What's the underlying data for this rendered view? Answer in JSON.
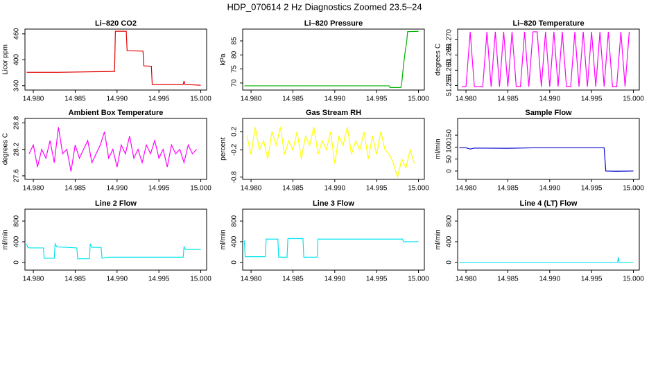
{
  "title": "HDP_070614  2 Hz Diagnostics Zoomed 23.5–24",
  "chart_data": [
    {
      "type": "line",
      "title": "Li–820 CO2",
      "y_label": "Licor ppm",
      "color": "#e00000",
      "x": [
        14.9792,
        14.983,
        14.986,
        14.9897,
        14.9898,
        14.9911,
        14.9912,
        14.9931,
        14.9932,
        14.9941,
        14.9942,
        14.9979,
        14.998,
        14.9981,
        15.0
      ],
      "values": [
        371,
        371,
        372,
        373,
        466,
        466,
        421,
        420,
        386,
        385,
        343,
        343,
        351,
        343,
        341
      ],
      "xlim": [
        14.979,
        15.0007
      ],
      "ylim": [
        330,
        471
      ],
      "xticks": [
        {
          "value": 14.98,
          "label": "14.980"
        },
        14.985,
        {
          "value": 14.99,
          "label": "14.990"
        },
        14.995,
        {
          "value": 15,
          "label": "15.000"
        }
      ],
      "yticks": [
        340,
        400,
        460
      ]
    },
    {
      "type": "line",
      "title": "Li–820 Pressure",
      "y_label": "kPa",
      "color": "#00b000",
      "x": [
        14.9792,
        14.99,
        14.9965,
        14.9966,
        14.9979,
        14.998,
        14.9982,
        14.9984,
        14.9986,
        14.9987,
        15.0
      ],
      "values": [
        69,
        69,
        69,
        68.4,
        68.4,
        70,
        76,
        81,
        85,
        88.3,
        88.4
      ],
      "xlim": [
        14.979,
        15.0007
      ],
      "ylim": [
        67.5,
        89.2
      ],
      "xticks": [
        {
          "value": 14.98,
          "label": "14.980"
        },
        14.985,
        {
          "value": 14.99,
          "label": "14.990"
        },
        14.995,
        {
          "value": 15,
          "label": "15.000"
        }
      ],
      "yticks": [
        70,
        75,
        80,
        85
      ]
    },
    {
      "type": "line",
      "title": "Li–820 Temperature",
      "y_label": "degrees C",
      "color": "#ff00ff",
      "x": [
        14.9795,
        14.98,
        14.9805,
        14.981,
        14.9815,
        14.982,
        14.9825,
        14.983,
        14.9835,
        14.984,
        14.9845,
        14.985,
        14.9855,
        14.986,
        14.9865,
        14.987,
        14.9875,
        14.988,
        14.9885,
        14.989,
        14.9895,
        14.99,
        14.9905,
        14.991,
        14.9915,
        14.992,
        14.9925,
        14.993,
        14.9935,
        14.994,
        14.9945,
        14.995,
        14.9955,
        14.996,
        14.9965,
        14.997,
        14.9975,
        14.998,
        14.9985,
        14.999,
        14.9995
      ],
      "values": [
        51.2546,
        51.2546,
        51.2726,
        51.2546,
        51.2546,
        51.2546,
        51.2726,
        51.2546,
        51.2726,
        51.2546,
        51.2726,
        51.2546,
        51.2726,
        51.2546,
        51.2546,
        51.2726,
        51.2546,
        51.2726,
        51.2726,
        51.2546,
        51.2726,
        51.2546,
        51.2726,
        51.2546,
        51.2726,
        51.2546,
        51.2546,
        51.2726,
        51.2546,
        51.2726,
        51.2546,
        51.2726,
        51.2546,
        51.2726,
        51.2546,
        51.2726,
        51.2546,
        51.2546,
        51.2726,
        51.2546,
        51.2726
      ],
      "xlim": [
        14.979,
        15.0007
      ],
      "ylim": [
        51.2535,
        51.2735
      ],
      "xticks": [
        {
          "value": 14.98,
          "label": "14.980"
        },
        14.985,
        {
          "value": 14.99,
          "label": "14.990"
        },
        14.995,
        {
          "value": 15,
          "label": "15.000"
        }
      ],
      "yticks": [
        51.255,
        {
          "value": 51.26,
          "label": "51.260"
        },
        51.265,
        {
          "value": 51.27,
          "label": "51.270"
        }
      ]
    },
    {
      "type": "line",
      "title": "Ambient Box Temperature",
      "y_label": "degrees C",
      "color": "#ff00ff",
      "x": [
        14.9795,
        14.98,
        14.9805,
        14.981,
        14.9815,
        14.982,
        14.9825,
        14.983,
        14.9835,
        14.984,
        14.9845,
        14.985,
        14.9855,
        14.986,
        14.9865,
        14.987,
        14.9875,
        14.988,
        14.9885,
        14.989,
        14.9895,
        14.99,
        14.9905,
        14.991,
        14.9915,
        14.992,
        14.9925,
        14.993,
        14.9935,
        14.994,
        14.9945,
        14.995,
        14.9955,
        14.996,
        14.9965,
        14.997,
        14.9975,
        14.998,
        14.9985,
        14.999,
        14.9995
      ],
      "values": [
        28.1,
        28.3,
        27.8,
        28.2,
        28.0,
        28.4,
        27.9,
        28.7,
        28.1,
        28.2,
        27.7,
        28.3,
        28.0,
        28.2,
        28.4,
        27.9,
        28.1,
        28.3,
        28.6,
        28.0,
        28.2,
        27.8,
        28.3,
        28.1,
        28.5,
        28.0,
        28.2,
        27.9,
        28.3,
        28.1,
        28.4,
        28.0,
        28.2,
        27.8,
        28.3,
        28.1,
        28.2,
        27.9,
        28.3,
        28.1,
        28.2
      ],
      "xlim": [
        14.979,
        15.0007
      ],
      "ylim": [
        27.52,
        28.9
      ],
      "xticks": [
        {
          "value": 14.98,
          "label": "14.980"
        },
        14.985,
        {
          "value": 14.99,
          "label": "14.990"
        },
        14.995,
        {
          "value": 15,
          "label": "15.000"
        }
      ],
      "yticks": [
        27.6,
        28.2,
        28.8
      ]
    },
    {
      "type": "line",
      "title": "Gas Stream RH",
      "y_label": "percent",
      "color": "#ffff00",
      "x": [
        14.9795,
        14.98,
        14.9805,
        14.981,
        14.9815,
        14.982,
        14.9825,
        14.983,
        14.9835,
        14.984,
        14.9845,
        14.985,
        14.9855,
        14.986,
        14.9865,
        14.987,
        14.9875,
        14.988,
        14.9885,
        14.989,
        14.9895,
        14.99,
        14.9905,
        14.991,
        14.9915,
        14.992,
        14.9925,
        14.993,
        14.9935,
        14.994,
        14.9945,
        14.995,
        14.9955,
        14.996,
        14.9965,
        14.997,
        14.9975,
        14.998,
        14.9985,
        14.999,
        14.9995
      ],
      "values": [
        0.1,
        -0.3,
        0.3,
        -0.2,
        0.0,
        -0.4,
        0.2,
        -0.1,
        0.3,
        -0.3,
        0.0,
        -0.2,
        0.2,
        -0.4,
        0.1,
        -0.1,
        0.3,
        -0.3,
        0.0,
        -0.2,
        0.2,
        -0.5,
        0.1,
        -0.1,
        0.3,
        -0.3,
        0.0,
        -0.2,
        0.2,
        -0.4,
        0.1,
        -0.3,
        0.2,
        -0.2,
        -0.3,
        -0.5,
        -0.8,
        -0.4,
        -0.6,
        -0.2,
        -0.5
      ],
      "xlim": [
        14.979,
        15.0007
      ],
      "ylim": [
        -0.85,
        0.49
      ],
      "xticks": [
        {
          "value": 14.98,
          "label": "14.980"
        },
        14.985,
        {
          "value": 14.99,
          "label": "14.990"
        },
        14.995,
        {
          "value": 15,
          "label": "15.000"
        }
      ],
      "yticks": [
        -0.8,
        -0.2,
        0.2
      ]
    },
    {
      "type": "line",
      "title": "Sample Flow",
      "y_label": "ml/min",
      "color": "#0000cc",
      "x": [
        14.9792,
        14.98,
        14.9805,
        14.981,
        14.985,
        14.988,
        14.992,
        14.9965,
        14.9967,
        14.998,
        15.0
      ],
      "values": [
        97,
        97,
        92,
        96,
        95,
        97,
        97,
        97,
        0,
        -1,
        0
      ],
      "xlim": [
        14.979,
        15.0007
      ],
      "ylim": [
        -35,
        220
      ],
      "xticks": [
        {
          "value": 14.98,
          "label": "14.980"
        },
        14.985,
        {
          "value": 14.99,
          "label": "14.990"
        },
        14.995,
        {
          "value": 15,
          "label": "15.000"
        }
      ],
      "yticks": [
        0,
        50,
        100,
        150
      ]
    },
    {
      "type": "line",
      "title": "Line 2 Flow",
      "y_label": "ml/min",
      "color": "#00e5ee",
      "x": [
        14.9792,
        14.9793,
        14.9795,
        14.9812,
        14.9813,
        14.9825,
        14.9826,
        14.9828,
        14.9852,
        14.9853,
        14.9867,
        14.9868,
        14.987,
        14.9881,
        14.9882,
        14.989,
        14.9979,
        14.998,
        14.9982,
        15.0
      ],
      "values": [
        360,
        300,
        280,
        280,
        80,
        80,
        360,
        300,
        280,
        70,
        70,
        360,
        290,
        290,
        80,
        100,
        100,
        300,
        250,
        250
      ],
      "xlim": [
        14.979,
        15.0007
      ],
      "ylim": [
        -150,
        1030
      ],
      "xticks": [
        {
          "value": 14.98,
          "label": "14.980"
        },
        14.985,
        {
          "value": 14.99,
          "label": "14.990"
        },
        14.995,
        {
          "value": 15,
          "label": "15.000"
        }
      ],
      "yticks": [
        0,
        400,
        800
      ]
    },
    {
      "type": "line",
      "title": "Line 3 Flow",
      "y_label": "ml/min",
      "color": "#00e5ee",
      "x": [
        14.9792,
        14.9793,
        14.9817,
        14.9818,
        14.9832,
        14.9833,
        14.9843,
        14.9844,
        14.9862,
        14.9863,
        14.9879,
        14.988,
        14.9981,
        14.9982,
        15.0
      ],
      "values": [
        420,
        110,
        110,
        450,
        450,
        100,
        100,
        460,
        460,
        100,
        100,
        450,
        450,
        400,
        400
      ],
      "xlim": [
        14.979,
        15.0007
      ],
      "ylim": [
        -150,
        1030
      ],
      "xticks": [
        {
          "value": 14.98,
          "label": "14.980"
        },
        14.985,
        {
          "value": 14.99,
          "label": "14.990"
        },
        14.995,
        {
          "value": 15,
          "label": "15.000"
        }
      ],
      "yticks": [
        0,
        400,
        800
      ]
    },
    {
      "type": "line",
      "title": "Line 4 (LT) Flow",
      "y_label": "ml/min",
      "color": "#00e5ee",
      "x": [
        14.9792,
        14.9981,
        14.9982,
        14.9983,
        15.0
      ],
      "values": [
        0,
        0,
        100,
        0,
        0
      ],
      "xlim": [
        14.979,
        15.0007
      ],
      "ylim": [
        -150,
        1030
      ],
      "xticks": [
        {
          "value": 14.98,
          "label": "14.980"
        },
        14.985,
        {
          "value": 14.99,
          "label": "14.990"
        },
        14.995,
        {
          "value": 15,
          "label": "15.000"
        }
      ],
      "yticks": [
        0,
        400,
        800
      ]
    }
  ]
}
